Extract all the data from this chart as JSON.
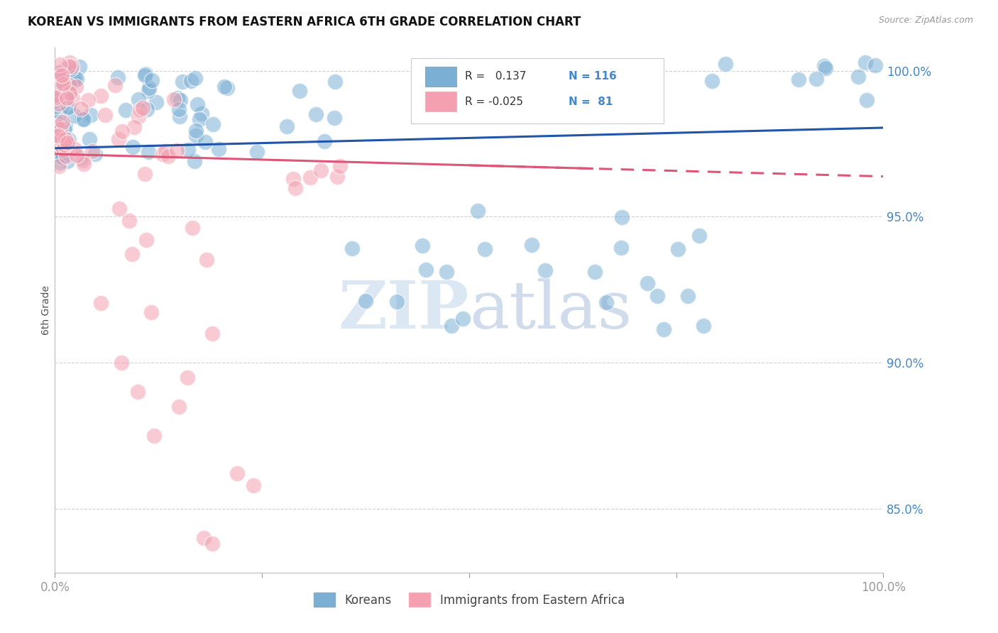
{
  "title": "KOREAN VS IMMIGRANTS FROM EASTERN AFRICA 6TH GRADE CORRELATION CHART",
  "source": "Source: ZipAtlas.com",
  "ylabel": "6th Grade",
  "watermark_zip": "ZIP",
  "watermark_atlas": "atlas",
  "legend_korean": "Koreans",
  "legend_eastern": "Immigrants from Eastern Africa",
  "r_korean": 0.137,
  "n_korean": 116,
  "r_eastern": -0.025,
  "n_eastern": 81,
  "xlim": [
    0.0,
    1.0
  ],
  "ylim": [
    0.828,
    1.008
  ],
  "yticks": [
    0.85,
    0.9,
    0.95,
    1.0
  ],
  "blue_color": "#7BAFD4",
  "pink_color": "#F4A0B0",
  "blue_line_color": "#2255AA",
  "pink_line_color": "#DD5577",
  "title_color": "#111111",
  "axis_tick_color": "#4488CC",
  "grid_color": "#CCCCCC",
  "background_color": "#FFFFFF",
  "trendline_korean_y0": 0.9735,
  "trendline_korean_y1": 0.9805,
  "trendline_eastern_solid_y0": 0.9715,
  "trendline_eastern_solid_y1": 0.9665,
  "trendline_eastern_solid_x1": 0.65,
  "trendline_eastern_dash_x0": 0.5,
  "trendline_eastern_dash_y0": 0.968,
  "trendline_eastern_dash_y1": 0.9625
}
